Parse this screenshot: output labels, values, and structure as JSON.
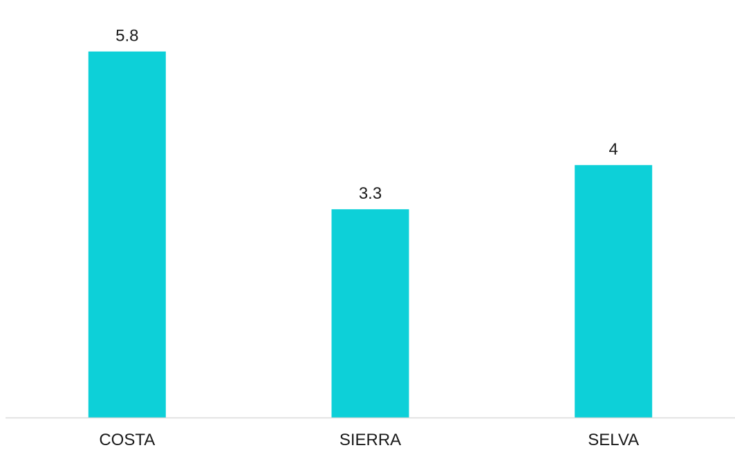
{
  "chart_data": {
    "type": "bar",
    "categories": [
      "COSTA",
      "SIERRA",
      "SELVA"
    ],
    "values": [
      5.8,
      3.3,
      4
    ],
    "data_labels": [
      "5.8",
      "3.3",
      "4"
    ],
    "title": "",
    "xlabel": "",
    "ylabel": "",
    "ylim": [
      0,
      6.2
    ],
    "grid": false,
    "legend": "none"
  },
  "colors": {
    "bar": "#0dd0d8",
    "axis": "#d9d9d9",
    "text": "#1a1a1a",
    "background": "#ffffff"
  }
}
